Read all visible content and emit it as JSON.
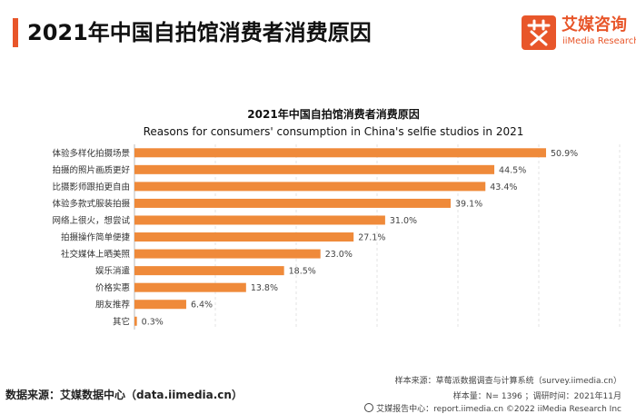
{
  "page_title": "2021年中国自拍馆消费者消费原因",
  "logo": {
    "cn": "艾媒咨询",
    "en": "iiMedia Research",
    "icon": "ai-logo-icon",
    "accent": "#e8562a"
  },
  "chart_data": {
    "type": "bar",
    "orientation": "horizontal",
    "title": "2021年中国自拍馆消费者消费原因",
    "subtitle": "Reasons for consumers' consumption in China's selfie studios in 2021",
    "categories": [
      "体验多样化拍摄场景",
      "拍摄的照片画质更好",
      "比摄影师跟拍更自由",
      "体验多款式服装拍摄",
      "网络上很火，想尝试",
      "拍摄操作简单便捷",
      "社交媒体上晒美照",
      "娱乐消遣",
      "价格实惠",
      "朋友推荐",
      "其它"
    ],
    "values": [
      50.9,
      44.5,
      43.4,
      39.1,
      31.0,
      27.1,
      23.0,
      18.5,
      13.8,
      6.4,
      0.3
    ],
    "value_labels": [
      "50.9%",
      "44.5%",
      "43.4%",
      "39.1%",
      "31.0%",
      "27.1%",
      "23.0%",
      "18.5%",
      "13.8%",
      "6.4%",
      "0.3%"
    ],
    "unit": "%",
    "xlim": [
      0,
      60
    ],
    "bar_color": "#ef8a3a",
    "grid": true
  },
  "footer": {
    "source_left": "数据来源：艾媒数据中心（data.iimedia.cn）",
    "sample_source": "样本来源：草莓派数据调查与计算系统（survey.iimedia.cn）",
    "sample_size": "样本量：N= 1396 ；调研时间：2021年11月",
    "copyright": "艾媒报告中心：report.iimedia.cn    ©2022  iiMedia Research  Inc"
  }
}
